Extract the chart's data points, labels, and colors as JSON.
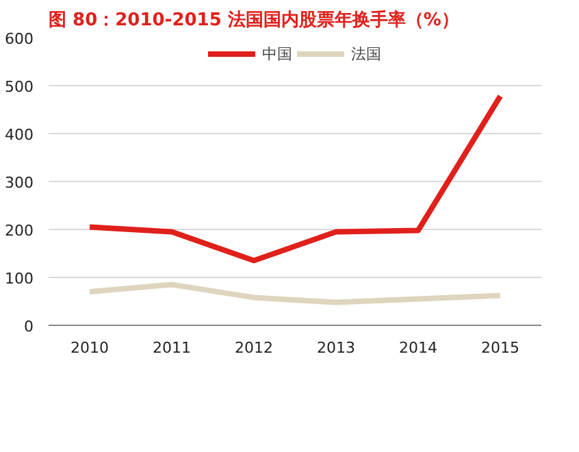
{
  "chart_data": {
    "type": "line",
    "title": "图 80：2010-2015 法国国内股票年换手率（%）",
    "categories": [
      "2010",
      "2011",
      "2012",
      "2013",
      "2014",
      "2015"
    ],
    "series": [
      {
        "name": "中国",
        "color": "#e0201b",
        "values": [
          205,
          195,
          135,
          195,
          198,
          478
        ]
      },
      {
        "name": "法国",
        "color": "#ddd5bd",
        "values": [
          70,
          85,
          58,
          48,
          55,
          62
        ]
      }
    ],
    "ylim": [
      0,
      600
    ],
    "yticks": [
      0,
      100,
      200,
      300,
      400,
      500,
      600
    ],
    "grid": "y",
    "legend": "top",
    "marker": "none",
    "line_style": "solid"
  }
}
